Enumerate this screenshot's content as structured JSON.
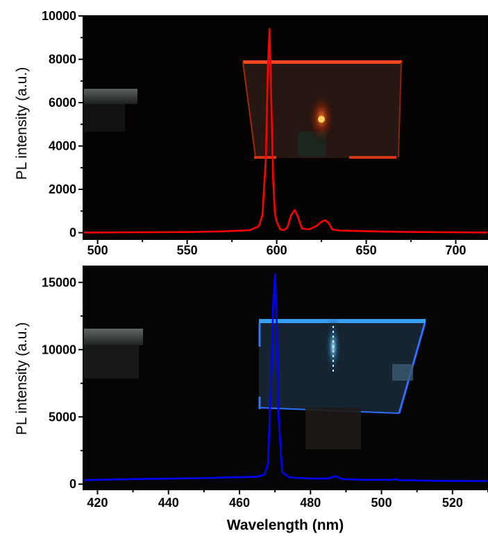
{
  "chart_data": [
    {
      "type": "line",
      "xlabel": "",
      "ylabel": "PL intensity (a.u.)",
      "xlim": [
        492,
        718
      ],
      "ylim": [
        -300,
        10000
      ],
      "xticks": [
        500,
        550,
        600,
        650,
        700
      ],
      "yticks": [
        0,
        2000,
        4000,
        6000,
        8000,
        10000
      ],
      "grid": false,
      "background": "photograph of red-emitting sample glowing in the dark",
      "series": [
        {
          "color": "#ff0000",
          "x": [
            492,
            520,
            550,
            570,
            585,
            590,
            592,
            594,
            595,
            596,
            597,
            598,
            599,
            600,
            602,
            604,
            606,
            608,
            610,
            612,
            614,
            618,
            622,
            625,
            627,
            629,
            631,
            635,
            645,
            660,
            680,
            700,
            718
          ],
          "y": [
            10,
            20,
            30,
            60,
            120,
            300,
            800,
            3500,
            7500,
            9400,
            6000,
            2500,
            900,
            500,
            150,
            120,
            250,
            800,
            1050,
            700,
            200,
            150,
            300,
            500,
            580,
            450,
            150,
            100,
            80,
            50,
            30,
            20,
            10
          ]
        }
      ]
    },
    {
      "type": "line",
      "xlabel": "Wavelength (nm)",
      "ylabel": "PL intensity (a.u.)",
      "xlim": [
        416,
        530
      ],
      "ylim": [
        -400,
        16200
      ],
      "xticks": [
        420,
        440,
        460,
        480,
        500,
        520
      ],
      "yticks": [
        0,
        5000,
        10000,
        15000
      ],
      "grid": false,
      "background": "photograph of blue-emitting sample glowing in the dark",
      "series": [
        {
          "color": "#0000ff",
          "x": [
            416,
            430,
            450,
            460,
            465,
            467,
            468,
            469,
            469.5,
            470,
            470.5,
            471,
            472,
            474,
            480,
            485,
            486,
            487,
            489,
            495,
            503,
            504,
            505,
            515,
            530
          ],
          "y": [
            300,
            380,
            450,
            520,
            560,
            700,
            1500,
            8000,
            13500,
            15600,
            12000,
            5000,
            900,
            500,
            420,
            420,
            500,
            600,
            380,
            320,
            320,
            380,
            300,
            250,
            230
          ]
        }
      ]
    }
  ]
}
